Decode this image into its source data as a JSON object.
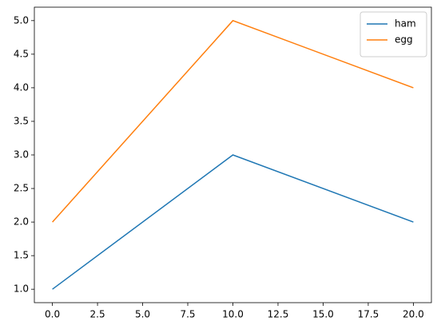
{
  "chart_data": {
    "type": "line",
    "x": [
      0,
      10,
      20
    ],
    "series": [
      {
        "name": "ham",
        "color": "#1f77b4",
        "values": [
          1,
          3,
          2
        ]
      },
      {
        "name": "egg",
        "color": "#ff7f0e",
        "values": [
          2,
          5,
          4
        ]
      }
    ],
    "xlim": [
      -1,
      21
    ],
    "ylim": [
      0.8,
      5.2
    ],
    "xticks": [
      {
        "value": 0,
        "label": "0.0"
      },
      {
        "value": 2.5,
        "label": "2.5"
      },
      {
        "value": 5,
        "label": "5.0"
      },
      {
        "value": 7.5,
        "label": "7.5"
      },
      {
        "value": 10,
        "label": "10.0"
      },
      {
        "value": 12.5,
        "label": "12.5"
      },
      {
        "value": 15,
        "label": "15.0"
      },
      {
        "value": 17.5,
        "label": "17.5"
      },
      {
        "value": 20,
        "label": "20.0"
      }
    ],
    "yticks": [
      {
        "value": 1,
        "label": "1.0"
      },
      {
        "value": 1.5,
        "label": "1.5"
      },
      {
        "value": 2,
        "label": "2.0"
      },
      {
        "value": 2.5,
        "label": "2.5"
      },
      {
        "value": 3,
        "label": "3.0"
      },
      {
        "value": 3.5,
        "label": "3.5"
      },
      {
        "value": 4,
        "label": "4.0"
      },
      {
        "value": 4.5,
        "label": "4.5"
      },
      {
        "value": 5,
        "label": "5.0"
      }
    ],
    "legend": "upper right"
  }
}
